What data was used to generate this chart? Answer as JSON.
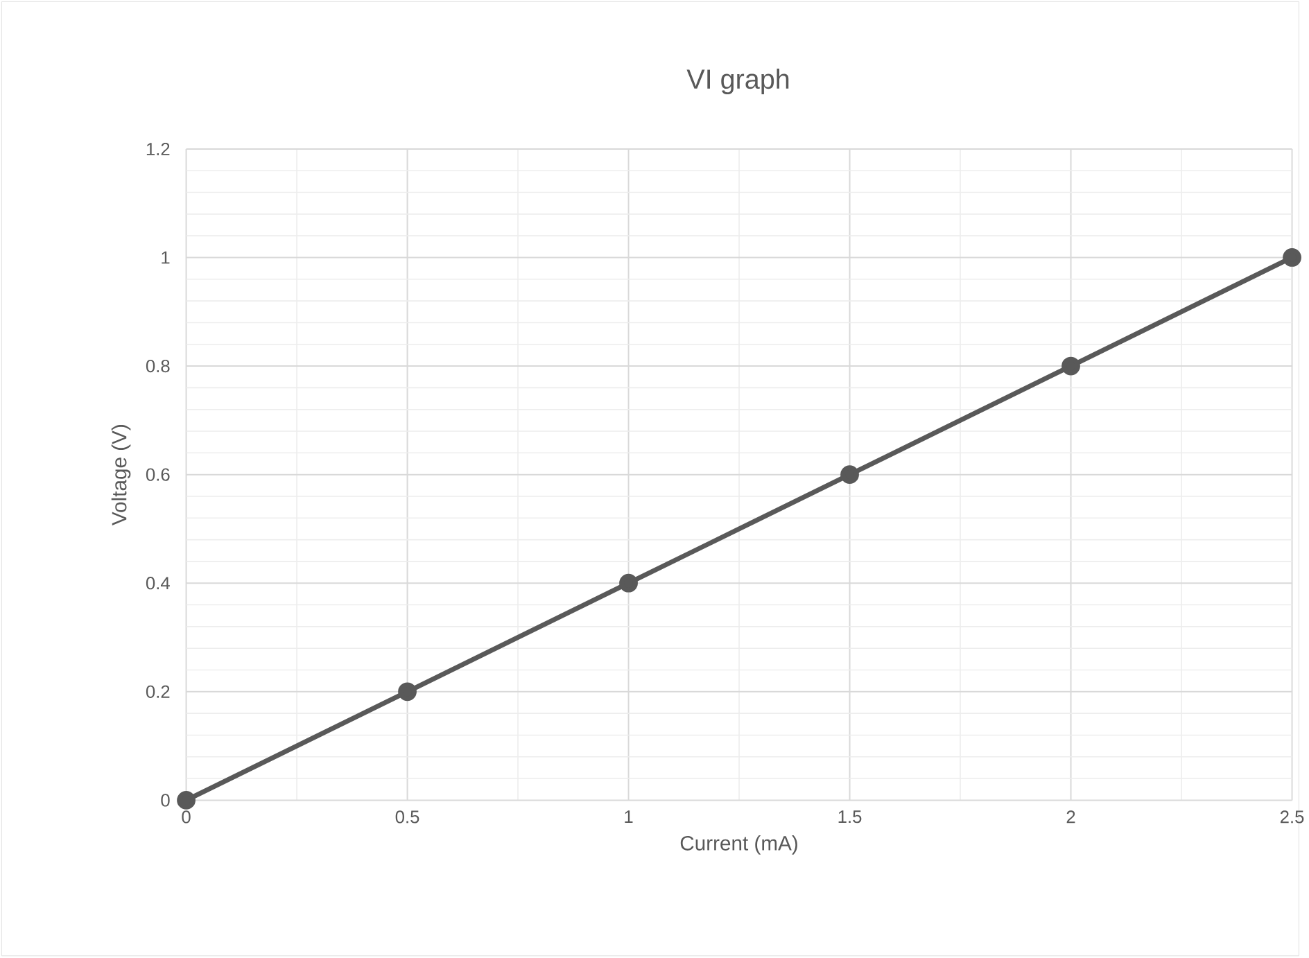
{
  "chart_data": {
    "type": "line",
    "title": "VI graph",
    "xlabel": "Current (mA)",
    "ylabel": "Voltage (V)",
    "x": [
      0,
      0.5,
      1,
      1.5,
      2,
      2.5
    ],
    "series": [
      {
        "color": "#595959",
        "values": [
          0,
          0.2,
          0.4,
          0.6,
          0.8,
          1
        ]
      }
    ],
    "xlim": [
      0,
      2.5
    ],
    "ylim": [
      0,
      1.2
    ],
    "xticks": [
      0,
      0.5,
      1,
      1.5,
      2,
      2.5
    ],
    "yticks": [
      0,
      0.2,
      0.4,
      0.6,
      0.8,
      1,
      1.2
    ],
    "grid": true,
    "marker": "circle",
    "line_style": "solid"
  }
}
